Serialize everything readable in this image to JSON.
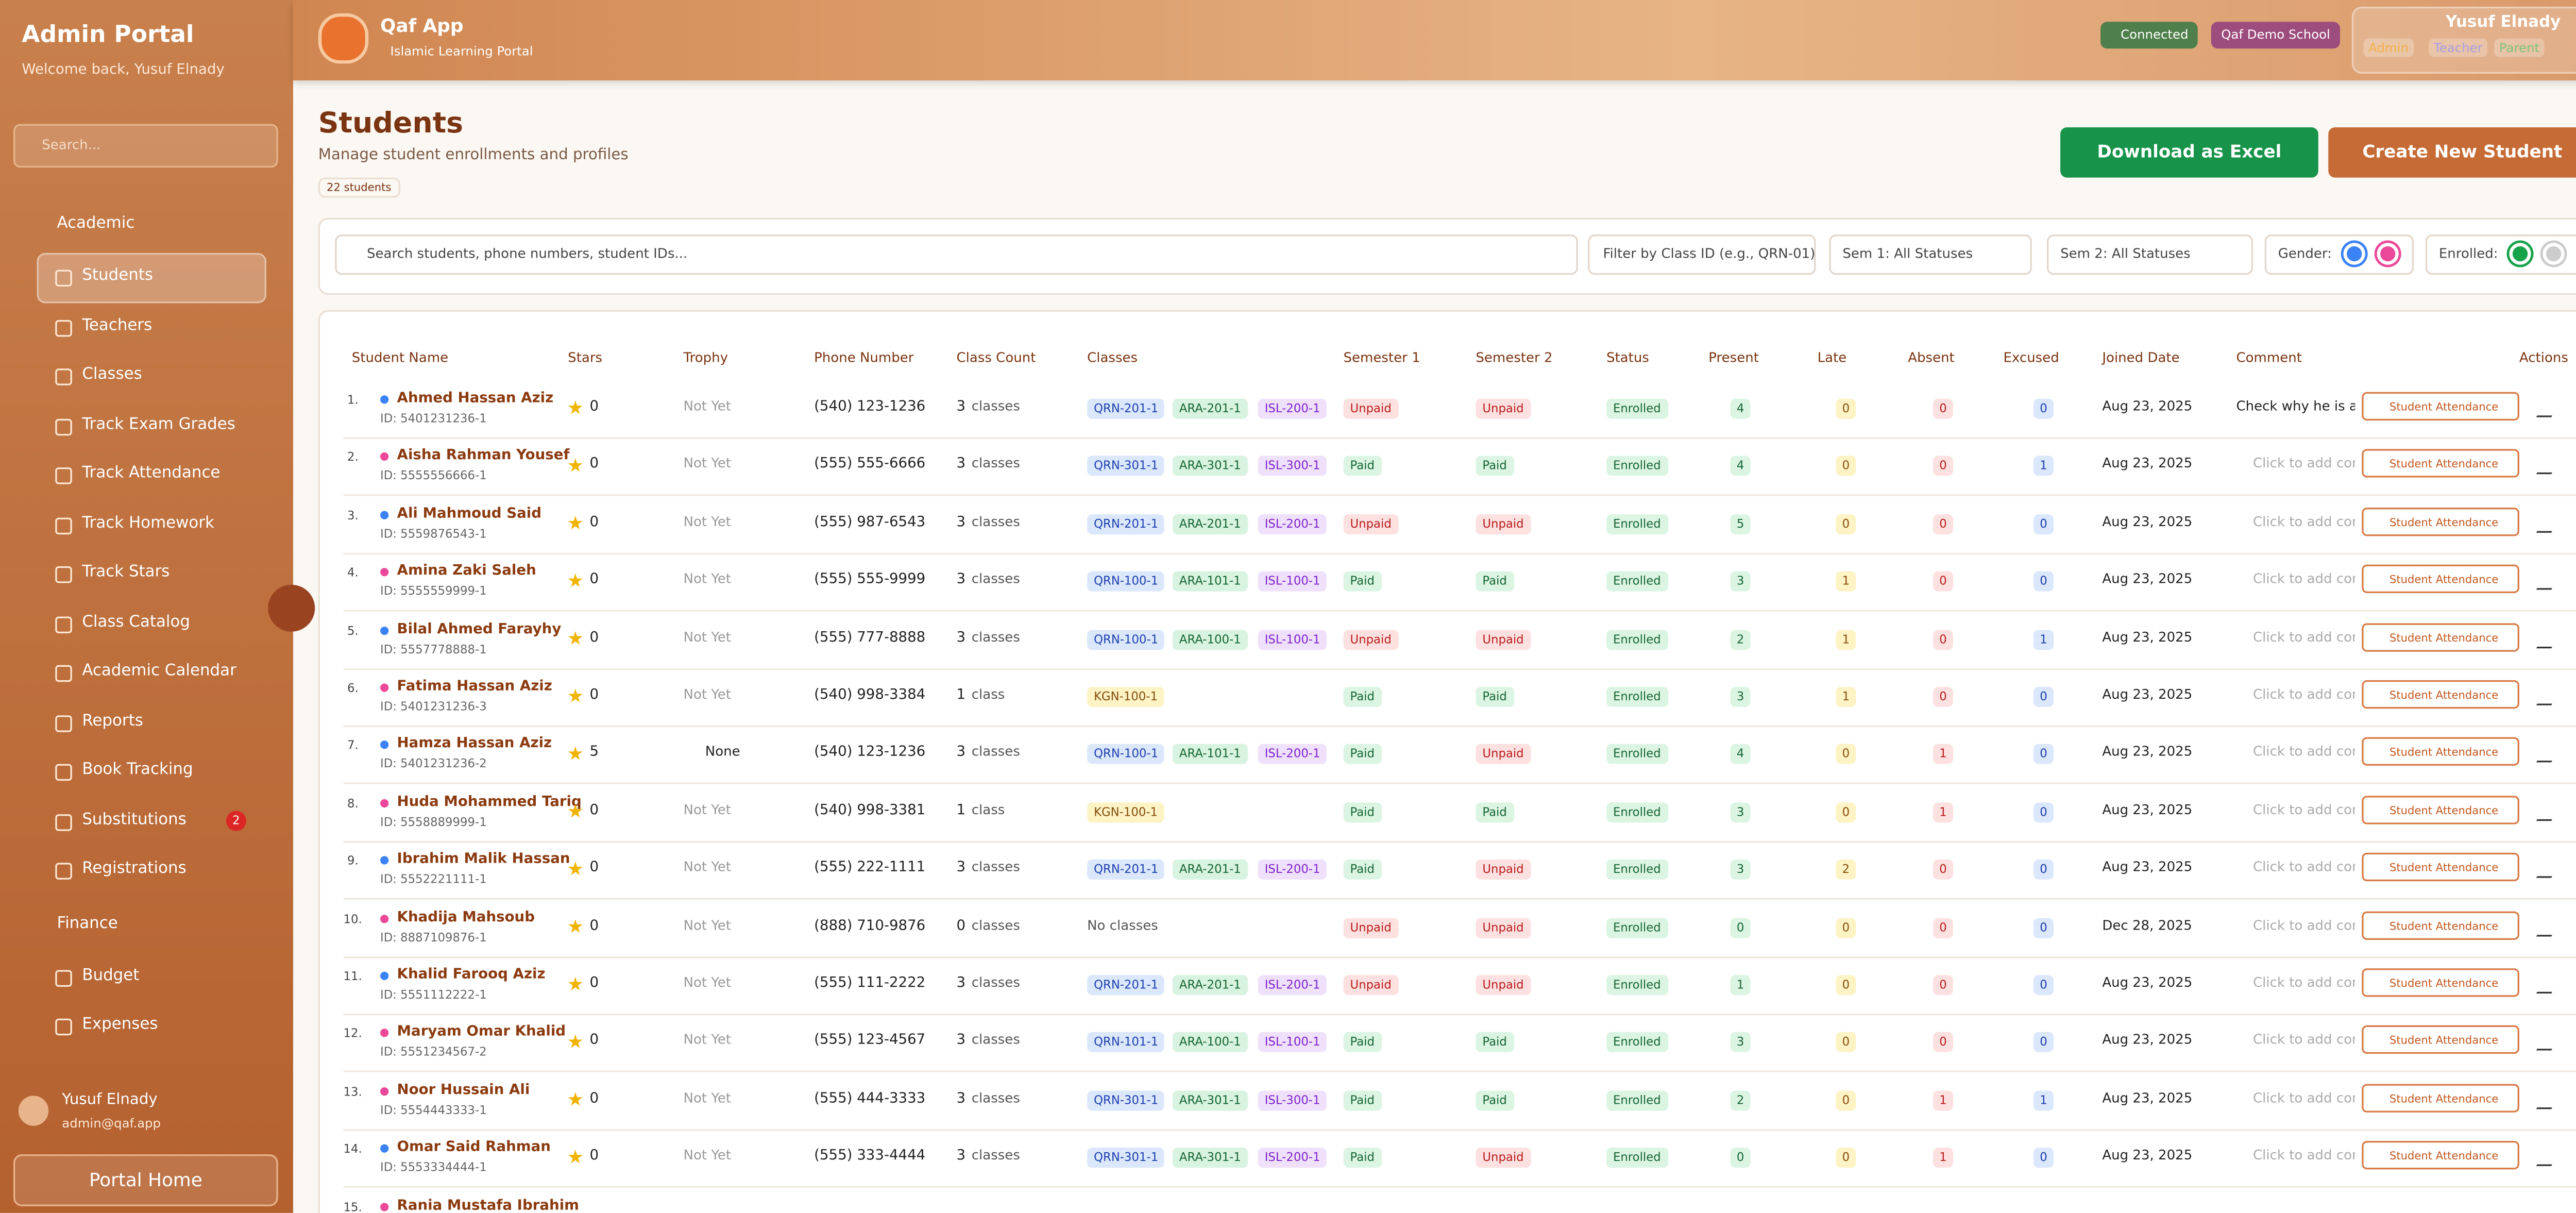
{
  "sidebar": {
    "title": "Admin Portal",
    "welcome": "Welcome back, Yusuf Elnady",
    "search": "Search...",
    "sections": [
      {
        "title": "Academic",
        "items": [
          "Students",
          "Teachers",
          "Classes",
          "Track Exam Grades",
          "Track Attendance",
          "Track Homework",
          "Track Stars",
          "Class Catalog",
          "Academic Calendar",
          "Reports",
          "Book Tracking",
          "Substitutions",
          "Registrations"
        ]
      },
      {
        "title": "Finance",
        "items": [
          "Budget",
          "Expenses"
        ]
      }
    ],
    "badge": {
      "item": "Substitutions",
      "count": 2
    },
    "active": "Students",
    "user": {
      "name": "Yusuf Elnady",
      "email": "admin@qaf.app"
    },
    "portal_home": "Portal Home"
  },
  "header": {
    "app": "Qaf App",
    "subtitle": "Islamic Learning Portal",
    "status": "Connected",
    "school": "Qaf Demo School",
    "user": "Yusuf Elnady",
    "roles": [
      "Admin",
      "Teacher",
      "Parent"
    ]
  },
  "page": {
    "title": "Students",
    "subtitle": "Manage student enrollments and profiles",
    "count": "22 students",
    "download": "Download as Excel",
    "create": "Create New Student"
  },
  "filters": {
    "search": "Search students, phone numbers, student IDs...",
    "class": "Filter by Class ID (e.g., QRN-01)",
    "sem1": "Sem 1: All Statuses",
    "sem2": "Sem 2: All Statuses",
    "gender": "Gender:",
    "enrolled": "Enrolled:"
  },
  "table": {
    "headers": [
      "Student Name",
      "Stars",
      "Trophy",
      "Phone Number",
      "Class Count",
      "Classes",
      "Semester 1",
      "Semester 2",
      "Status",
      "Present",
      "Late",
      "Absent",
      "Excused",
      "Joined Date",
      "Comment",
      "Actions"
    ],
    "action": "Student Attendance",
    "rows": [
      {
        "n": "1.",
        "name": "Ahmed Hassan Aziz",
        "id": "ID: 5401231236-1",
        "dot": "#3b82f6",
        "stars": 0,
        "trophy": "Not Yet",
        "phone": "(540) 123-1236",
        "count": 3,
        "unit": "classes",
        "classes": [
          "QRN-201-1",
          "ARA-201-1",
          "ISL-200-1"
        ],
        "sem1": "Unpaid",
        "sem2": "Unpaid",
        "status": "Enrolled",
        "present": 4,
        "late": 0,
        "absent": 0,
        "excused": 0,
        "joined": "Aug 23, 2025",
        "comment": "Check why he is ab"
      },
      {
        "n": "2.",
        "name": "Aisha Rahman Yousef",
        "id": "ID: 5555556666-1",
        "dot": "#ec4899",
        "stars": 0,
        "trophy": "Not Yet",
        "phone": "(555) 555-6666",
        "count": 3,
        "unit": "classes",
        "classes": [
          "QRN-301-1",
          "ARA-301-1",
          "ISL-300-1"
        ],
        "sem1": "Paid",
        "sem2": "Paid",
        "status": "Enrolled",
        "present": 4,
        "late": 0,
        "absent": 0,
        "excused": 1,
        "joined": "Aug 23, 2025",
        "comment": "Click to add com"
      },
      {
        "n": "3.",
        "name": "Ali Mahmoud Said",
        "id": "ID: 5559876543-1",
        "dot": "#3b82f6",
        "stars": 0,
        "trophy": "Not Yet",
        "phone": "(555) 987-6543",
        "count": 3,
        "unit": "classes",
        "classes": [
          "QRN-201-1",
          "ARA-201-1",
          "ISL-200-1"
        ],
        "sem1": "Unpaid",
        "sem2": "Unpaid",
        "status": "Enrolled",
        "present": 5,
        "late": 0,
        "absent": 0,
        "excused": 0,
        "joined": "Aug 23, 2025",
        "comment": "Click to add com"
      },
      {
        "n": "4.",
        "name": "Amina Zaki Saleh",
        "id": "ID: 5555559999-1",
        "dot": "#ec4899",
        "stars": 0,
        "trophy": "Not Yet",
        "phone": "(555) 555-9999",
        "count": 3,
        "unit": "classes",
        "classes": [
          "QRN-100-1",
          "ARA-101-1",
          "ISL-100-1"
        ],
        "sem1": "Paid",
        "sem2": "Paid",
        "status": "Enrolled",
        "present": 3,
        "late": 1,
        "absent": 0,
        "excused": 0,
        "joined": "Aug 23, 2025",
        "comment": "Click to add com"
      },
      {
        "n": "5.",
        "name": "Bilal Ahmed Farayhy",
        "id": "ID: 5557778888-1",
        "dot": "#3b82f6",
        "stars": 0,
        "trophy": "Not Yet",
        "phone": "(555) 777-8888",
        "count": 3,
        "unit": "classes",
        "classes": [
          "QRN-100-1",
          "ARA-100-1",
          "ISL-100-1"
        ],
        "sem1": "Unpaid",
        "sem2": "Unpaid",
        "status": "Enrolled",
        "present": 2,
        "late": 1,
        "absent": 0,
        "excused": 1,
        "joined": "Aug 23, 2025",
        "comment": "Click to add com"
      },
      {
        "n": "6.",
        "name": "Fatima Hassan Aziz",
        "id": "ID: 5401231236-3",
        "dot": "#ec4899",
        "stars": 0,
        "trophy": "Not Yet",
        "phone": "(540) 998-3384",
        "count": 1,
        "unit": "class",
        "classes": [
          "KGN-100-1"
        ],
        "sem1": "Paid",
        "sem2": "Paid",
        "status": "Enrolled",
        "present": 3,
        "late": 1,
        "absent": 0,
        "excused": 0,
        "joined": "Aug 23, 2025",
        "comment": "Click to add com"
      },
      {
        "n": "7.",
        "name": "Hamza Hassan Aziz",
        "id": "ID: 5401231236-2",
        "dot": "#3b82f6",
        "stars": 5,
        "trophy": "None",
        "phone": "(540) 123-1236",
        "count": 3,
        "unit": "classes",
        "classes": [
          "QRN-100-1",
          "ARA-101-1",
          "ISL-200-1"
        ],
        "sem1": "Paid",
        "sem2": "Unpaid",
        "status": "Enrolled",
        "present": 4,
        "late": 0,
        "absent": 1,
        "excused": 0,
        "joined": "Aug 23, 2025",
        "comment": "Click to add com"
      },
      {
        "n": "8.",
        "name": "Huda Mohammed Tariq",
        "id": "ID: 5558889999-1",
        "dot": "#ec4899",
        "stars": 0,
        "trophy": "Not Yet",
        "phone": "(540) 998-3381",
        "count": 1,
        "unit": "class",
        "classes": [
          "KGN-100-1"
        ],
        "sem1": "Paid",
        "sem2": "Paid",
        "status": "Enrolled",
        "present": 3,
        "late": 0,
        "absent": 1,
        "excused": 0,
        "joined": "Aug 23, 2025",
        "comment": "Click to add com"
      },
      {
        "n": "9.",
        "name": "Ibrahim Malik Hassan",
        "id": "ID: 5552221111-1",
        "dot": "#3b82f6",
        "stars": 0,
        "trophy": "Not Yet",
        "phone": "(555) 222-1111",
        "count": 3,
        "unit": "classes",
        "classes": [
          "QRN-201-1",
          "ARA-201-1",
          "ISL-200-1"
        ],
        "sem1": "Paid",
        "sem2": "Unpaid",
        "status": "Enrolled",
        "present": 3,
        "late": 2,
        "absent": 0,
        "excused": 0,
        "joined": "Aug 23, 2025",
        "comment": "Click to add com"
      },
      {
        "n": "10.",
        "name": "Khadija Mahsoub",
        "id": "ID: 8887109876-1",
        "dot": "#ec4899",
        "stars": 0,
        "trophy": "Not Yet",
        "phone": "(888) 710-9876",
        "count": 0,
        "unit": "classes",
        "classes": [],
        "noclass": "No classes",
        "sem1": "Unpaid",
        "sem2": "Unpaid",
        "status": "Enrolled",
        "present": 0,
        "late": 0,
        "absent": 0,
        "excused": 0,
        "joined": "Dec 28, 2025",
        "comment": "Click to add com"
      },
      {
        "n": "11.",
        "name": "Khalid Farooq Aziz",
        "id": "ID: 5551112222-1",
        "dot": "#3b82f6",
        "stars": 0,
        "trophy": "Not Yet",
        "phone": "(555) 111-2222",
        "count": 3,
        "unit": "classes",
        "classes": [
          "QRN-201-1",
          "ARA-201-1",
          "ISL-200-1"
        ],
        "sem1": "Unpaid",
        "sem2": "Unpaid",
        "status": "Enrolled",
        "present": 1,
        "late": 0,
        "absent": 0,
        "excused": 0,
        "joined": "Aug 23, 2025",
        "comment": "Click to add com"
      },
      {
        "n": "12.",
        "name": "Maryam Omar Khalid",
        "id": "ID: 5551234567-2",
        "dot": "#ec4899",
        "stars": 0,
        "trophy": "Not Yet",
        "phone": "(555) 123-4567",
        "count": 3,
        "unit": "classes",
        "classes": [
          "QRN-101-1",
          "ARA-100-1",
          "ISL-100-1"
        ],
        "sem1": "Paid",
        "sem2": "Paid",
        "status": "Enrolled",
        "present": 3,
        "late": 0,
        "absent": 0,
        "excused": 0,
        "joined": "Aug 23, 2025",
        "comment": "Click to add com"
      },
      {
        "n": "13.",
        "name": "Noor Hussain Ali",
        "id": "ID: 5554443333-1",
        "dot": "#ec4899",
        "stars": 0,
        "trophy": "Not Yet",
        "phone": "(555) 444-3333",
        "count": 3,
        "unit": "classes",
        "classes": [
          "QRN-301-1",
          "ARA-301-1",
          "ISL-300-1"
        ],
        "sem1": "Paid",
        "sem2": "Paid",
        "status": "Enrolled",
        "present": 2,
        "late": 0,
        "absent": 1,
        "excused": 1,
        "joined": "Aug 23, 2025",
        "comment": "Click to add com"
      },
      {
        "n": "14.",
        "name": "Omar Said Rahman",
        "id": "ID: 5553334444-1",
        "dot": "#3b82f6",
        "stars": 0,
        "trophy": "Not Yet",
        "phone": "(555) 333-4444",
        "count": 3,
        "unit": "classes",
        "classes": [
          "QRN-301-1",
          "ARA-301-1",
          "ISL-200-1"
        ],
        "sem1": "Paid",
        "sem2": "Unpaid",
        "status": "Enrolled",
        "present": 0,
        "late": 0,
        "absent": 1,
        "excused": 0,
        "joined": "Aug 23, 2025",
        "comment": "Click to add com"
      },
      {
        "n": "15.",
        "name": "Rania Mustafa Ibrahim",
        "dot": "#ec4899"
      }
    ]
  }
}
